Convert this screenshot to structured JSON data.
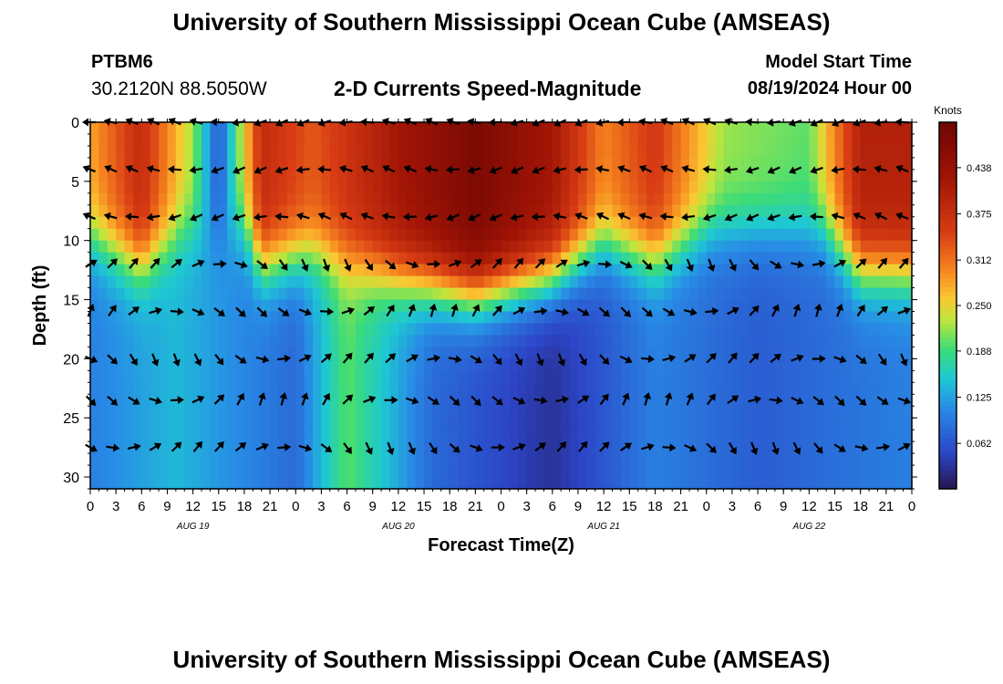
{
  "header": {
    "title": "University of Southern Mississippi Ocean Cube (AMSEAS)",
    "station_id": "PTBM6",
    "coordinates": "30.2120N  88.5050W",
    "subtitle": "2-D Currents Speed-Magnitude",
    "model_start_label": "Model Start Time",
    "model_start_value": "08/19/2024 Hour 00"
  },
  "footer": {
    "title": "University of Southern Mississippi Ocean Cube (AMSEAS)"
  },
  "chart_data": {
    "type": "heatmap",
    "title": "2-D Currents Speed-Magnitude",
    "xlabel": "Forecast Time(Z)",
    "ylabel": "Depth (ft)",
    "x_hours_range": [
      0,
      96
    ],
    "y_depth_range": [
      0,
      31
    ],
    "x_tick_labels": [
      "0",
      "3",
      "6",
      "9",
      "12",
      "15",
      "18",
      "21",
      "0",
      "3",
      "6",
      "9",
      "12",
      "15",
      "18",
      "21",
      "0",
      "3",
      "6",
      "9",
      "12",
      "15",
      "18",
      "21",
      "0",
      "3",
      "6",
      "9",
      "12",
      "15",
      "18",
      "21",
      "0"
    ],
    "y_ticks": [
      0,
      5,
      10,
      15,
      20,
      25,
      30
    ],
    "date_labels": [
      {
        "text": "AUG 19",
        "hour": 12
      },
      {
        "text": "AUG 20",
        "hour": 36
      },
      {
        "text": "AUG 21",
        "hour": 60
      },
      {
        "text": "AUG 22",
        "hour": 84
      }
    ],
    "colorbar": {
      "unit": "Knots",
      "range": [
        0.0,
        0.5
      ],
      "ticks": [
        "0.062",
        "0.125",
        "0.188",
        "0.250",
        "0.312",
        "0.375",
        "0.438"
      ]
    },
    "arrow_depths_ft": [
      0,
      4,
      8,
      12,
      16,
      20,
      23.5,
      27.5
    ],
    "arrow_time_step_hours": 2.5,
    "upper_layer_speed_knots": [
      {
        "hour": 0,
        "speed": 0.28
      },
      {
        "hour": 6,
        "speed": 0.38
      },
      {
        "hour": 12,
        "speed": 0.22
      },
      {
        "hour": 15,
        "speed": 0.06
      },
      {
        "hour": 20,
        "speed": 0.38
      },
      {
        "hour": 26,
        "speed": 0.33
      },
      {
        "hour": 36,
        "speed": 0.42
      },
      {
        "hour": 45,
        "speed": 0.48
      },
      {
        "hour": 54,
        "speed": 0.42
      },
      {
        "hour": 60,
        "speed": 0.3
      },
      {
        "hour": 66,
        "speed": 0.36
      },
      {
        "hour": 74,
        "speed": 0.22
      },
      {
        "hour": 84,
        "speed": 0.2
      },
      {
        "hour": 90,
        "speed": 0.4
      },
      {
        "hour": 96,
        "speed": 0.4
      }
    ],
    "lower_layer_speed_knots": [
      {
        "hour": 0,
        "speed": 0.1
      },
      {
        "hour": 10,
        "speed": 0.14
      },
      {
        "hour": 24,
        "speed": 0.08
      },
      {
        "hour": 30,
        "speed": 0.2
      },
      {
        "hour": 40,
        "speed": 0.08
      },
      {
        "hour": 54,
        "speed": 0.03
      },
      {
        "hour": 66,
        "speed": 0.1
      },
      {
        "hour": 78,
        "speed": 0.07
      },
      {
        "hour": 96,
        "speed": 0.1
      }
    ]
  }
}
